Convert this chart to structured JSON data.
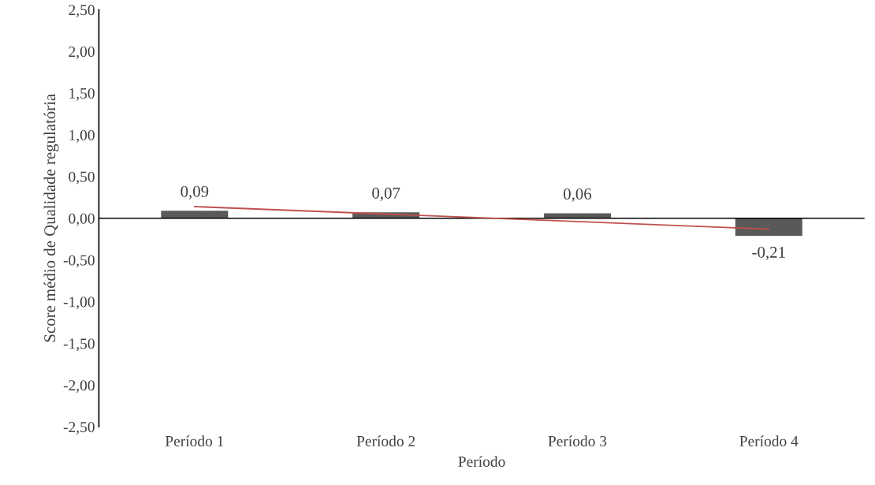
{
  "chart_data": {
    "type": "bar",
    "xlabel": "Período",
    "ylabel": "Score médio de Qualidade regulatória",
    "categories": [
      "Período 1",
      "Período 2",
      "Período 3",
      "Período 4"
    ],
    "series": [
      {
        "color": "#595959",
        "values": [
          0.09,
          0.07,
          0.06,
          -0.21
        ],
        "value_labels": [
          "0,09",
          "0,07",
          "0,06",
          "-0,21"
        ]
      },
      {
        "type": "line",
        "color": "#c0504d",
        "x": [
          "Período 1",
          "Período 4"
        ],
        "values": [
          0.14,
          -0.13
        ]
      }
    ],
    "ylim": [
      -2.5,
      2.5
    ],
    "yticks": [
      {
        "value": -2.5,
        "label": "-2,50"
      },
      {
        "value": -2.0,
        "label": "-2,00"
      },
      {
        "value": -1.5,
        "label": "-1,50"
      },
      {
        "value": -1.0,
        "label": "-1,00"
      },
      {
        "value": -0.5,
        "label": "-0,50"
      },
      {
        "value": 0,
        "label": "0,00"
      },
      {
        "value": 0.5,
        "label": "0,50"
      },
      {
        "value": 1.0,
        "label": "1,00"
      },
      {
        "value": 1.5,
        "label": "1,50"
      },
      {
        "value": 2.0,
        "label": "2,00"
      },
      {
        "value": 2.5,
        "label": "2,50"
      }
    ],
    "ref_lines": [
      {
        "axis": "y",
        "value": 0,
        "color": "#000000"
      }
    ],
    "grid": false,
    "legend": false
  }
}
